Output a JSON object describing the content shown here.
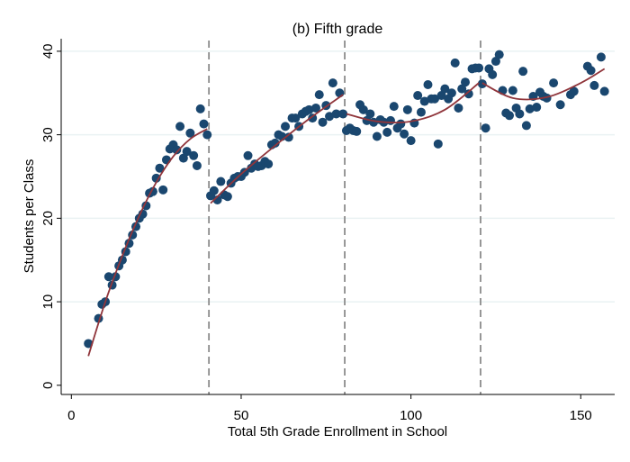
{
  "chart_data": {
    "type": "scatter",
    "title": "(b) Fifth grade",
    "xlabel": "Total 5th Grade Enrollment in School",
    "ylabel": "Students per Class",
    "xlim": [
      -3,
      160
    ],
    "ylim": [
      -1.1,
      41.5
    ],
    "xticks": [
      0,
      50,
      100,
      150
    ],
    "yticks": [
      0,
      10,
      20,
      30,
      40
    ],
    "grid": "horizontal",
    "vlines": [
      40.5,
      80.5,
      120.5
    ],
    "colors": {
      "points": "#1a476f",
      "fit": "#90353b",
      "vline": "#8c8c8c",
      "grid": "#eaf2f3"
    },
    "points": [
      [
        5,
        5
      ],
      [
        8,
        8
      ],
      [
        9,
        9.7
      ],
      [
        10,
        10
      ],
      [
        11,
        13
      ],
      [
        12,
        12
      ],
      [
        13,
        13
      ],
      [
        14,
        14.3
      ],
      [
        15,
        15
      ],
      [
        16,
        16
      ],
      [
        17,
        17
      ],
      [
        18,
        18
      ],
      [
        19,
        19
      ],
      [
        20,
        20
      ],
      [
        21,
        20.5
      ],
      [
        22,
        21.5
      ],
      [
        23,
        23
      ],
      [
        24,
        23.2
      ],
      [
        25,
        24.8
      ],
      [
        26,
        26
      ],
      [
        27,
        23.4
      ],
      [
        28,
        27
      ],
      [
        29,
        28.3
      ],
      [
        30,
        28.8
      ],
      [
        31,
        28.2
      ],
      [
        32,
        31
      ],
      [
        33,
        27.2
      ],
      [
        34,
        28
      ],
      [
        35,
        30.2
      ],
      [
        36,
        27.5
      ],
      [
        37,
        26.3
      ],
      [
        38,
        33.1
      ],
      [
        39,
        31.3
      ],
      [
        40,
        30
      ],
      [
        41,
        22.7
      ],
      [
        42,
        23.3
      ],
      [
        43,
        22.2
      ],
      [
        44,
        24.4
      ],
      [
        45,
        22.8
      ],
      [
        46,
        22.6
      ],
      [
        47,
        24.2
      ],
      [
        48,
        24.8
      ],
      [
        49,
        25
      ],
      [
        50,
        25
      ],
      [
        51,
        25.5
      ],
      [
        52,
        27.5
      ],
      [
        53,
        26
      ],
      [
        54,
        26.5
      ],
      [
        55,
        26.2
      ],
      [
        56,
        26.3
      ],
      [
        57,
        26.8
      ],
      [
        58,
        26.5
      ],
      [
        59,
        28.8
      ],
      [
        60,
        29
      ],
      [
        61,
        30
      ],
      [
        62,
        29.8
      ],
      [
        63,
        31
      ],
      [
        64,
        29.7
      ],
      [
        65,
        32
      ],
      [
        66,
        32
      ],
      [
        67,
        31
      ],
      [
        68,
        32.5
      ],
      [
        69,
        32.8
      ],
      [
        70,
        33
      ],
      [
        71,
        32
      ],
      [
        72,
        33.2
      ],
      [
        73,
        34.8
      ],
      [
        74,
        31.5
      ],
      [
        75,
        33.5
      ],
      [
        76,
        32.2
      ],
      [
        77,
        36.2
      ],
      [
        78,
        32.5
      ],
      [
        79,
        35
      ],
      [
        80,
        32.5
      ],
      [
        81,
        30.5
      ],
      [
        82,
        30.8
      ],
      [
        83,
        30.5
      ],
      [
        84,
        30.4
      ],
      [
        85,
        33.6
      ],
      [
        86,
        33
      ],
      [
        87,
        31.7
      ],
      [
        88,
        32.5
      ],
      [
        89,
        31.5
      ],
      [
        90,
        29.8
      ],
      [
        91,
        31.8
      ],
      [
        92,
        31.5
      ],
      [
        93,
        30.3
      ],
      [
        94,
        31.7
      ],
      [
        95,
        33.4
      ],
      [
        96,
        30.8
      ],
      [
        97,
        31.3
      ],
      [
        98,
        30.1
      ],
      [
        99,
        33
      ],
      [
        100,
        29.3
      ],
      [
        101,
        31.4
      ],
      [
        102,
        34.7
      ],
      [
        103,
        32.7
      ],
      [
        104,
        34
      ],
      [
        105,
        36
      ],
      [
        106,
        34.3
      ],
      [
        107,
        34.3
      ],
      [
        108,
        28.9
      ],
      [
        109,
        34.7
      ],
      [
        110,
        35.5
      ],
      [
        111,
        34.3
      ],
      [
        112,
        35
      ],
      [
        113,
        38.6
      ],
      [
        114,
        33.2
      ],
      [
        115,
        35.5
      ],
      [
        116,
        36.3
      ],
      [
        117,
        34.9
      ],
      [
        118,
        37.9
      ],
      [
        119,
        38
      ],
      [
        120,
        38
      ],
      [
        121,
        36.1
      ],
      [
        122,
        30.8
      ],
      [
        123,
        37.9
      ],
      [
        124,
        37.2
      ],
      [
        125,
        38.8
      ],
      [
        126,
        39.6
      ],
      [
        127,
        35.3
      ],
      [
        128,
        32.6
      ],
      [
        129,
        32.3
      ],
      [
        130,
        35.3
      ],
      [
        131,
        33.2
      ],
      [
        132,
        32.5
      ],
      [
        133,
        37.6
      ],
      [
        134,
        31.1
      ],
      [
        135,
        33.1
      ],
      [
        136,
        34.6
      ],
      [
        137,
        33.3
      ],
      [
        138,
        35.1
      ],
      [
        139,
        34.6
      ],
      [
        140,
        34.4
      ],
      [
        142,
        36.2
      ],
      [
        144,
        33.6
      ],
      [
        147,
        34.8
      ],
      [
        148,
        35.2
      ],
      [
        152,
        38.2
      ],
      [
        153,
        37.7
      ],
      [
        154,
        35.9
      ],
      [
        156,
        39.3
      ],
      [
        157,
        35.2
      ]
    ],
    "fit_segments": [
      [
        [
          5,
          3.5
        ],
        [
          10,
          10
        ],
        [
          15,
          15.5
        ],
        [
          20,
          20.3
        ],
        [
          25,
          24.3
        ],
        [
          30,
          27.4
        ],
        [
          35,
          29.5
        ],
        [
          40,
          30.7
        ]
      ],
      [
        [
          41,
          21.8
        ],
        [
          50,
          25.3
        ],
        [
          60,
          28.7
        ],
        [
          70,
          31.9
        ],
        [
          80,
          34.8
        ]
      ],
      [
        [
          81,
          32.5
        ],
        [
          90,
          31.6
        ],
        [
          100,
          31.6
        ],
        [
          110,
          33
        ],
        [
          120,
          36.2
        ]
      ],
      [
        [
          121,
          36.2
        ],
        [
          130,
          34.4
        ],
        [
          140,
          34.5
        ],
        [
          150,
          36.2
        ],
        [
          157,
          37.9
        ]
      ]
    ]
  }
}
